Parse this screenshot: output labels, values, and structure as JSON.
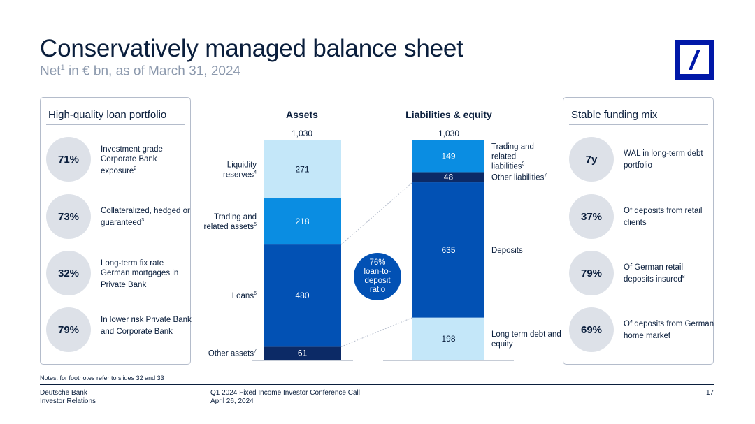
{
  "header": {
    "title": "Conservatively managed balance sheet",
    "subtitle_pre": "Net",
    "subtitle_sup": "1",
    "subtitle_post": " in € bn, as of March 31, 2024"
  },
  "colors": {
    "brand_blue": "#0018a8",
    "navy": "#0a1e3c",
    "light_blue": "#c4e7f9",
    "sky_blue": "#0a8de2",
    "mid_blue": "#0251b4",
    "dark_blue": "#0c2a66",
    "circle_grey": "#dde1e8"
  },
  "left_panel": {
    "title": "High-quality loan portfolio",
    "items": [
      {
        "value": "71%",
        "text": "Investment grade Corporate Bank exposure",
        "sup": "2"
      },
      {
        "value": "73%",
        "text": "Collateralized, hedged or guaranteed",
        "sup": "3"
      },
      {
        "value": "32%",
        "text": "Long-term fix rate German mortgages in Private Bank",
        "sup": ""
      },
      {
        "value": "79%",
        "text": "In lower risk Private Bank and Corporate Bank",
        "sup": ""
      }
    ]
  },
  "right_panel": {
    "title": "Stable funding mix",
    "items": [
      {
        "value": "7y",
        "text": "WAL in long-term debt portfolio",
        "sup": ""
      },
      {
        "value": "37%",
        "text": "Of deposits from retail clients",
        "sup": ""
      },
      {
        "value": "79%",
        "text": "Of German retail deposits insured",
        "sup": "8"
      },
      {
        "value": "69%",
        "text": "Of deposits from German home market",
        "sup": ""
      }
    ]
  },
  "chart_data": {
    "type": "bar",
    "stacked": true,
    "categories": [
      "Assets",
      "Liabilities & equity"
    ],
    "totals": [
      "1,030",
      "1,030"
    ],
    "ylim": [
      0,
      1030
    ],
    "series_assets": [
      {
        "name": "Other assets",
        "sup": "7",
        "value": 61,
        "color": "#0c2a66"
      },
      {
        "name": "Loans",
        "sup": "6",
        "value": 480,
        "color": "#0251b4"
      },
      {
        "name": "Trading and related assets",
        "sup": "5",
        "value": 218,
        "color": "#0a8de2"
      },
      {
        "name": "Liquidity reserves",
        "sup": "4",
        "value": 271,
        "color": "#c4e7f9"
      }
    ],
    "series_liabilities": [
      {
        "name": "Long term debt and equity",
        "sup": "",
        "value": 198,
        "color": "#c4e7f9"
      },
      {
        "name": "Deposits",
        "sup": "",
        "value": 635,
        "color": "#0251b4"
      },
      {
        "name": "Other liabilities",
        "sup": "7",
        "value": 48,
        "color": "#0c2a66"
      },
      {
        "name": "Trading and related liabilities",
        "sup": "5",
        "value": 149,
        "color": "#0a8de2"
      }
    ],
    "annotation": "76% loan-to-deposit ratio"
  },
  "notes": "Notes: for footnotes refer to slides 32 and 33",
  "footer": {
    "company": "Deutsche Bank",
    "department": "Investor Relations",
    "event": "Q1 2024 Fixed Income Investor Conference Call",
    "date": "April 26, 2024",
    "page": "17"
  }
}
